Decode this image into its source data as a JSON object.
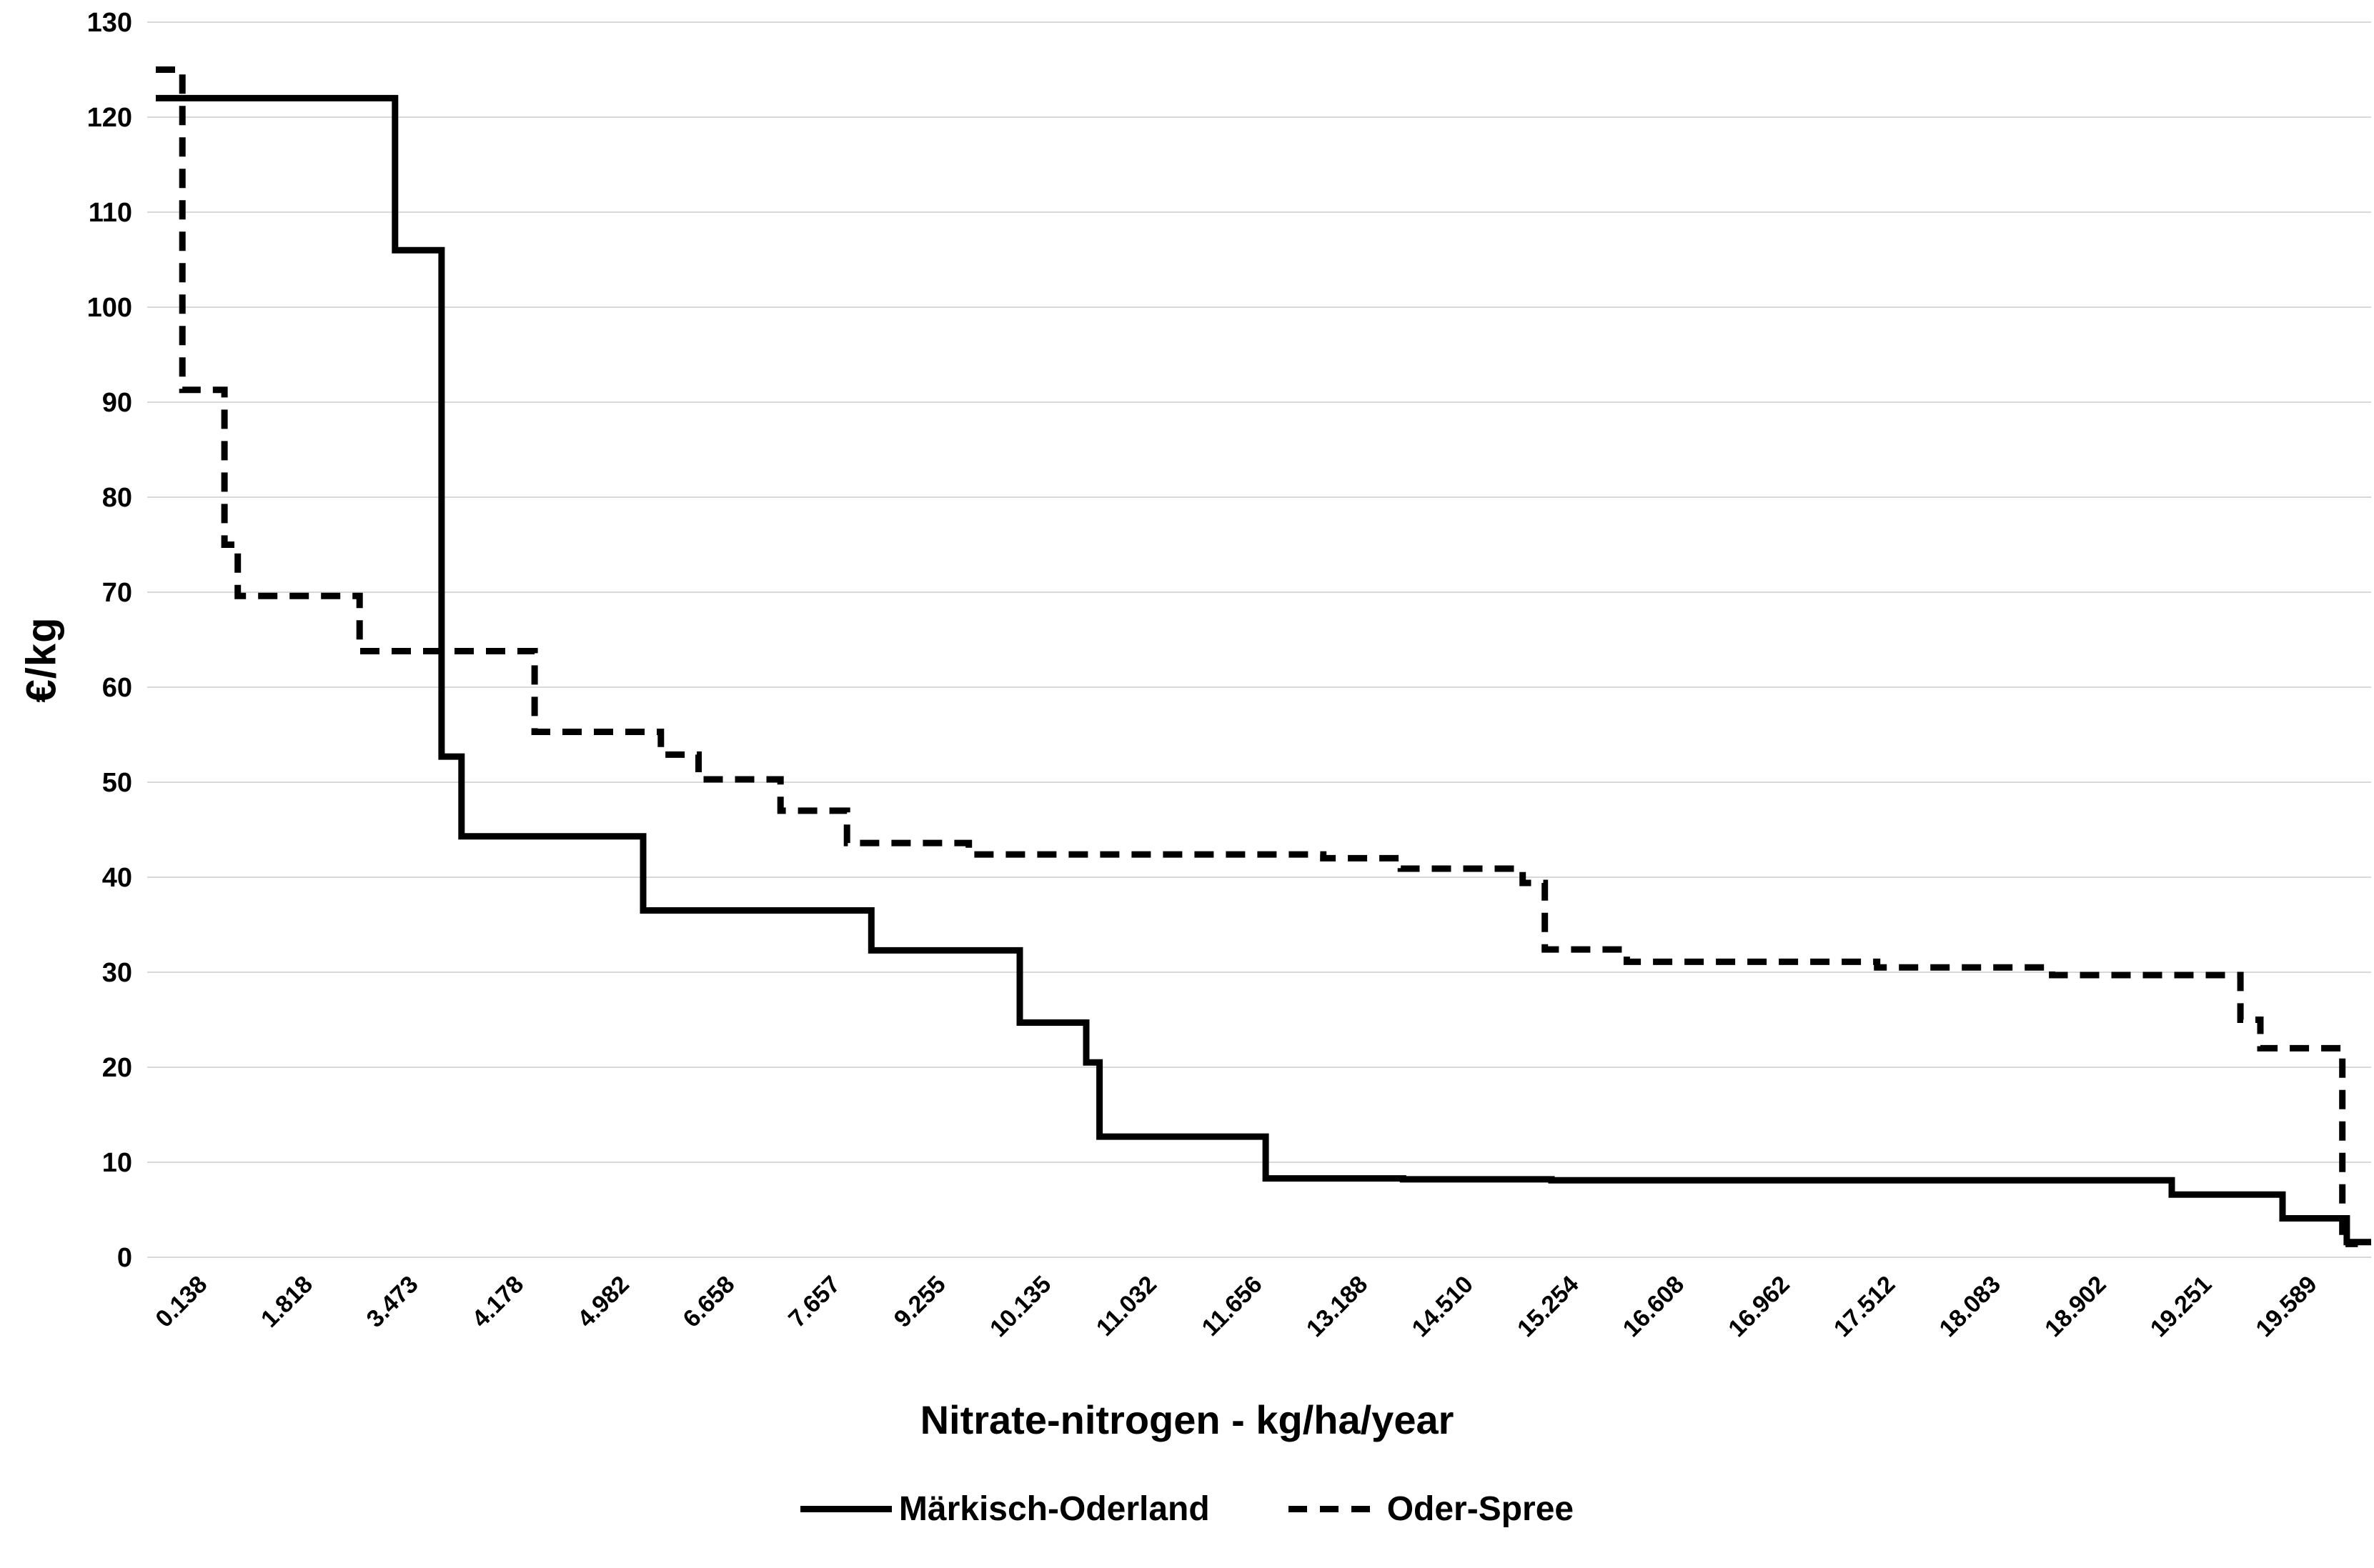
{
  "colors": {
    "background": "#ffffff",
    "grid": "#d9d9d9",
    "line": "#000000",
    "text": "#000000"
  },
  "chart_data": {
    "type": "line",
    "subtype": "step",
    "title": "",
    "xlabel": "Nitrate-nitrogen - kg/ha/year",
    "ylabel": "€/kg",
    "ylim": [
      0,
      130
    ],
    "yticks": [
      0,
      10,
      20,
      30,
      40,
      50,
      60,
      70,
      80,
      90,
      100,
      110,
      120,
      130
    ],
    "x_tick_labels": [
      "0.138",
      "1.818",
      "3.473",
      "4.178",
      "4.982",
      "6.658",
      "7.657",
      "9.255",
      "10.135",
      "11.032",
      "11.656",
      "13.188",
      "14.510",
      "15.254",
      "16.608",
      "16.962",
      "17.512",
      "18.083",
      "18.902",
      "19.251",
      "19.589"
    ],
    "grid": "horizontal",
    "legend_position": "bottom",
    "x_axis_note": "categorical axis; series x given as fraction 0-1 of plot width, tick i centered at (i+0.5)/21",
    "series": [
      {
        "name": "Märkisch-Oderland",
        "style": "solid",
        "color": "#000000",
        "points": [
          [
            0.0,
            122
          ],
          [
            0.108,
            122
          ],
          [
            0.108,
            106
          ],
          [
            0.129,
            106
          ],
          [
            0.129,
            52.7
          ],
          [
            0.138,
            52.7
          ],
          [
            0.138,
            44.3
          ],
          [
            0.22,
            44.3
          ],
          [
            0.22,
            36.5
          ],
          [
            0.323,
            36.5
          ],
          [
            0.323,
            32.3
          ],
          [
            0.39,
            32.3
          ],
          [
            0.39,
            24.7
          ],
          [
            0.42,
            24.7
          ],
          [
            0.42,
            20.5
          ],
          [
            0.426,
            20.5
          ],
          [
            0.426,
            12.7
          ],
          [
            0.501,
            12.7
          ],
          [
            0.501,
            8.3
          ],
          [
            0.563,
            8.3
          ],
          [
            0.563,
            8.2
          ],
          [
            0.63,
            8.2
          ],
          [
            0.63,
            8.1
          ],
          [
            0.91,
            8.1
          ],
          [
            0.91,
            6.6
          ],
          [
            0.96,
            6.6
          ],
          [
            0.96,
            4.1
          ],
          [
            0.989,
            4.1
          ],
          [
            0.989,
            1.6
          ],
          [
            1.0,
            1.6
          ]
        ]
      },
      {
        "name": "Oder-Spree",
        "style": "dashed",
        "color": "#000000",
        "points": [
          [
            0.0,
            125
          ],
          [
            0.012,
            125
          ],
          [
            0.012,
            91.3
          ],
          [
            0.031,
            91.3
          ],
          [
            0.031,
            75.0
          ],
          [
            0.037,
            75.0
          ],
          [
            0.037,
            69.6
          ],
          [
            0.092,
            69.6
          ],
          [
            0.092,
            63.8
          ],
          [
            0.171,
            63.8
          ],
          [
            0.171,
            55.3
          ],
          [
            0.228,
            55.3
          ],
          [
            0.228,
            52.9
          ],
          [
            0.245,
            52.9
          ],
          [
            0.245,
            50.3
          ],
          [
            0.282,
            50.3
          ],
          [
            0.282,
            47.0
          ],
          [
            0.312,
            47.0
          ],
          [
            0.312,
            43.6
          ],
          [
            0.367,
            43.6
          ],
          [
            0.367,
            42.4
          ],
          [
            0.527,
            42.4
          ],
          [
            0.527,
            42.0
          ],
          [
            0.562,
            42.0
          ],
          [
            0.562,
            40.9
          ],
          [
            0.617,
            40.9
          ],
          [
            0.617,
            39.4
          ],
          [
            0.627,
            39.4
          ],
          [
            0.627,
            32.4
          ],
          [
            0.664,
            32.4
          ],
          [
            0.664,
            31.1
          ],
          [
            0.777,
            31.1
          ],
          [
            0.777,
            30.5
          ],
          [
            0.856,
            30.5
          ],
          [
            0.856,
            29.7
          ],
          [
            0.941,
            29.7
          ],
          [
            0.941,
            25.0
          ],
          [
            0.95,
            25.0
          ],
          [
            0.95,
            22.0
          ],
          [
            0.987,
            22.0
          ],
          [
            0.987,
            1.4
          ],
          [
            0.994,
            1.4
          ]
        ]
      }
    ]
  }
}
